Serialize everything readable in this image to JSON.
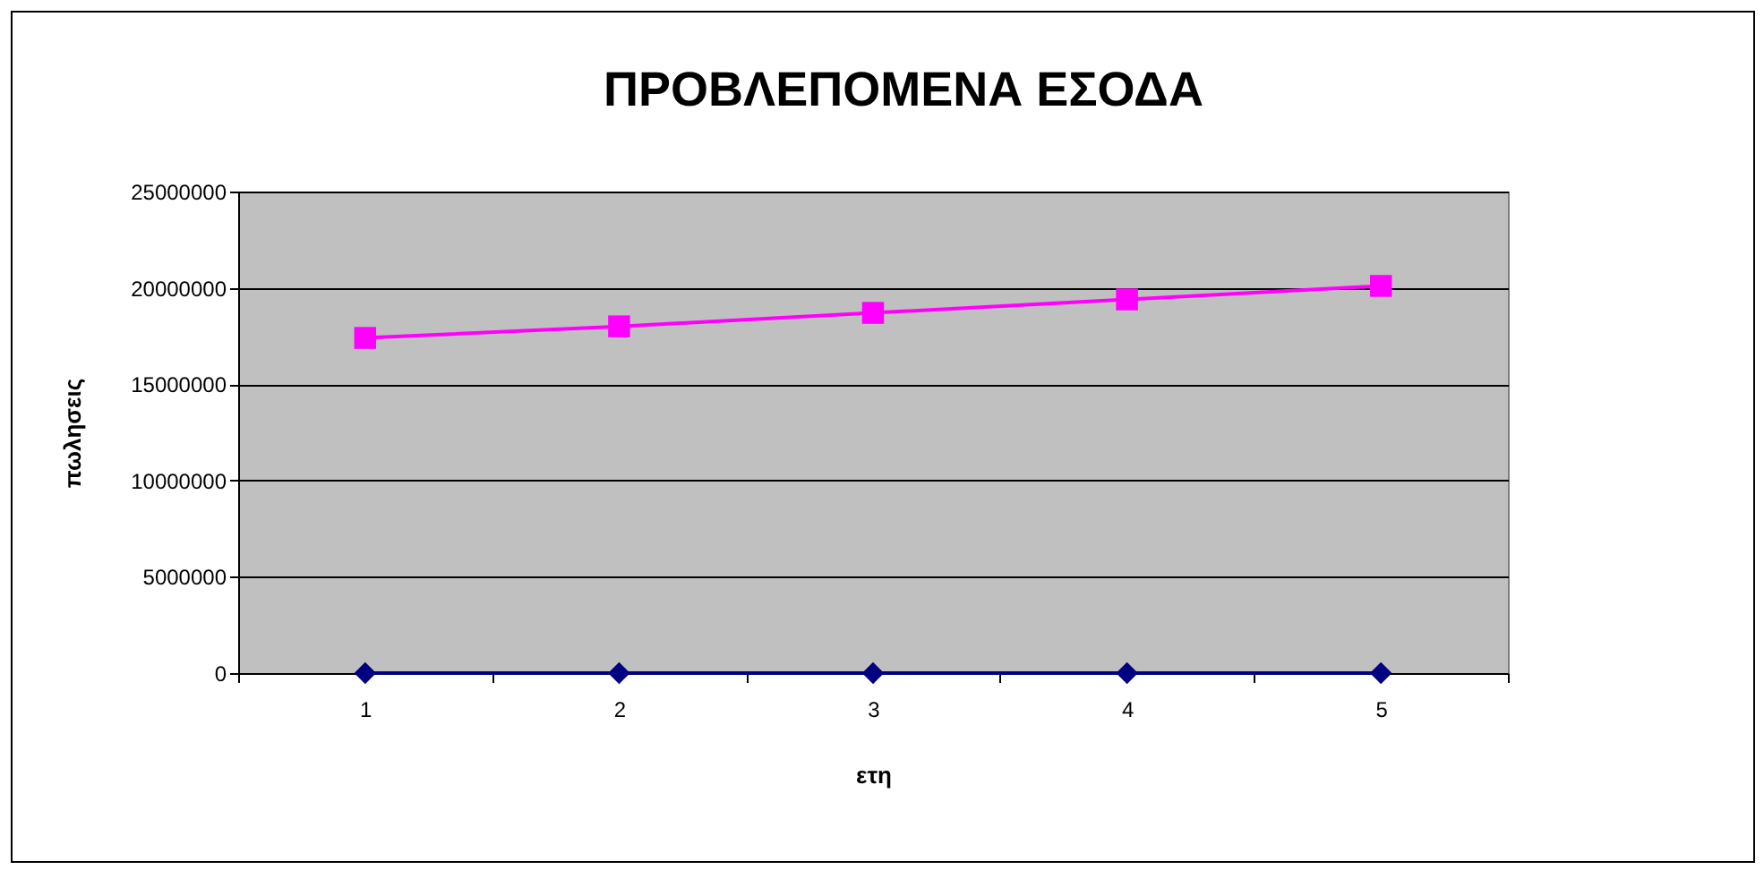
{
  "chart_data": {
    "type": "line",
    "title": "ΠΡΟΒΛΕΠΟΜΕΝΑ ΕΣΟΔΑ",
    "xlabel": "ετη",
    "ylabel": "πωλησεις",
    "categories": [
      "1",
      "2",
      "3",
      "4",
      "5"
    ],
    "series": [
      {
        "color": "#000080",
        "marker": "diamond",
        "values": [
          0,
          0,
          0,
          0,
          0
        ]
      },
      {
        "color": "#ff00ff",
        "marker": "square",
        "values": [
          17400000,
          18000000,
          18700000,
          19400000,
          20100000
        ]
      }
    ],
    "ylim": [
      0,
      25000000
    ],
    "yticks": [
      0,
      5000000,
      10000000,
      15000000,
      20000000,
      25000000
    ],
    "grid": "y"
  }
}
